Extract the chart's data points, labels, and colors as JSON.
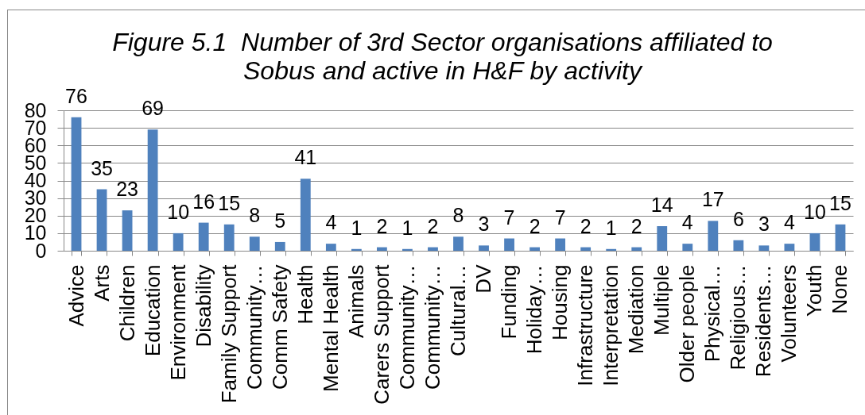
{
  "chart_data": {
    "type": "bar",
    "title": "Figure 5.1  Number of 3rd Sector organisations affiliated to Sobus and active in H&F by activity",
    "categories": [
      "Advice",
      "Arts",
      "Children",
      "Education",
      "Environment",
      "Disability",
      "Family Support",
      "Community…",
      "Comm Safety",
      "Health",
      "Mental Health",
      "Animals",
      "Carers Support",
      "Community…",
      "Community…",
      "Cultural…",
      "DV",
      "Funding",
      "Holiday…",
      "Housing",
      "Infrastructure",
      "Interpretation",
      "Mediation",
      "Multiple",
      "Older people",
      "Physical…",
      "Religious…",
      "Residents…",
      "Volunteers",
      "Youth",
      "None"
    ],
    "values": [
      76,
      35,
      23,
      69,
      10,
      16,
      15,
      8,
      5,
      41,
      4,
      1,
      2,
      1,
      2,
      8,
      3,
      7,
      2,
      7,
      2,
      1,
      2,
      14,
      4,
      17,
      6,
      3,
      4,
      10,
      15
    ],
    "color": "#4f81bd",
    "ylim": [
      0,
      80
    ],
    "yticks": [
      0,
      10,
      20,
      30,
      40,
      50,
      60,
      70,
      80
    ],
    "grid": "y",
    "data_labels": true
  }
}
